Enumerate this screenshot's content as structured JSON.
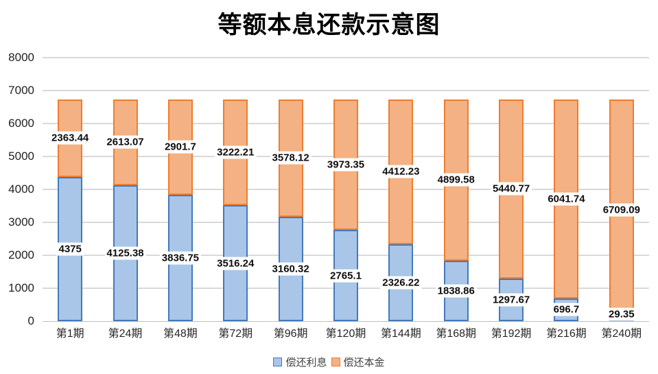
{
  "title": "等额本息还款示意图",
  "colors": {
    "interest_fill": "#A9C6E8",
    "interest_border": "#4479B8",
    "principal_fill": "#F4B183",
    "principal_border": "#ED7D31",
    "gridline": "#D9D9D9",
    "axis_line": "#BFBFBF"
  },
  "legend": {
    "interest_label": "偿还利息",
    "principal_label": "偿还本金"
  },
  "chart_data": {
    "type": "bar",
    "stacked": true,
    "title": "等额本息还款示意图",
    "categories": [
      "第1期",
      "第24期",
      "第48期",
      "第72期",
      "第96期",
      "第120期",
      "第144期",
      "第168期",
      "第192期",
      "第216期",
      "第240期"
    ],
    "series": [
      {
        "name": "偿还利息",
        "values": [
          4375,
          4125.38,
          3836.75,
          3516.24,
          3160.32,
          2765.1,
          2326.22,
          1838.86,
          1297.67,
          696.7,
          29.35
        ]
      },
      {
        "name": "偿还本金",
        "values": [
          2363.44,
          2613.07,
          2901.7,
          3222.21,
          3578.12,
          3973.35,
          4412.23,
          4899.58,
          5440.77,
          6041.74,
          6709.09
        ]
      }
    ],
    "data_labels": {
      "interest": [
        "4375",
        "4125.38",
        "3836.75",
        "3516.24",
        "3160.32",
        "2765.1",
        "2326.22",
        "1838.86",
        "1297.67",
        "696.7",
        "29.35"
      ],
      "principal": [
        "2363.44",
        "2613.07",
        "2901.7",
        "3222.21",
        "3578.12",
        "3973.35",
        "4412.23",
        "4899.58",
        "5440.77",
        "6041.74",
        "6709.09"
      ]
    },
    "xlabel": "",
    "ylabel": "",
    "ylim": [
      0,
      8000
    ],
    "yticks": [
      "8000",
      "7000",
      "6000",
      "5000",
      "4000",
      "3000",
      "2000",
      "1000",
      "0"
    ],
    "ytick_values": [
      8000,
      7000,
      6000,
      5000,
      4000,
      3000,
      2000,
      1000,
      0
    ],
    "grid": true,
    "legend_position": "bottom"
  }
}
